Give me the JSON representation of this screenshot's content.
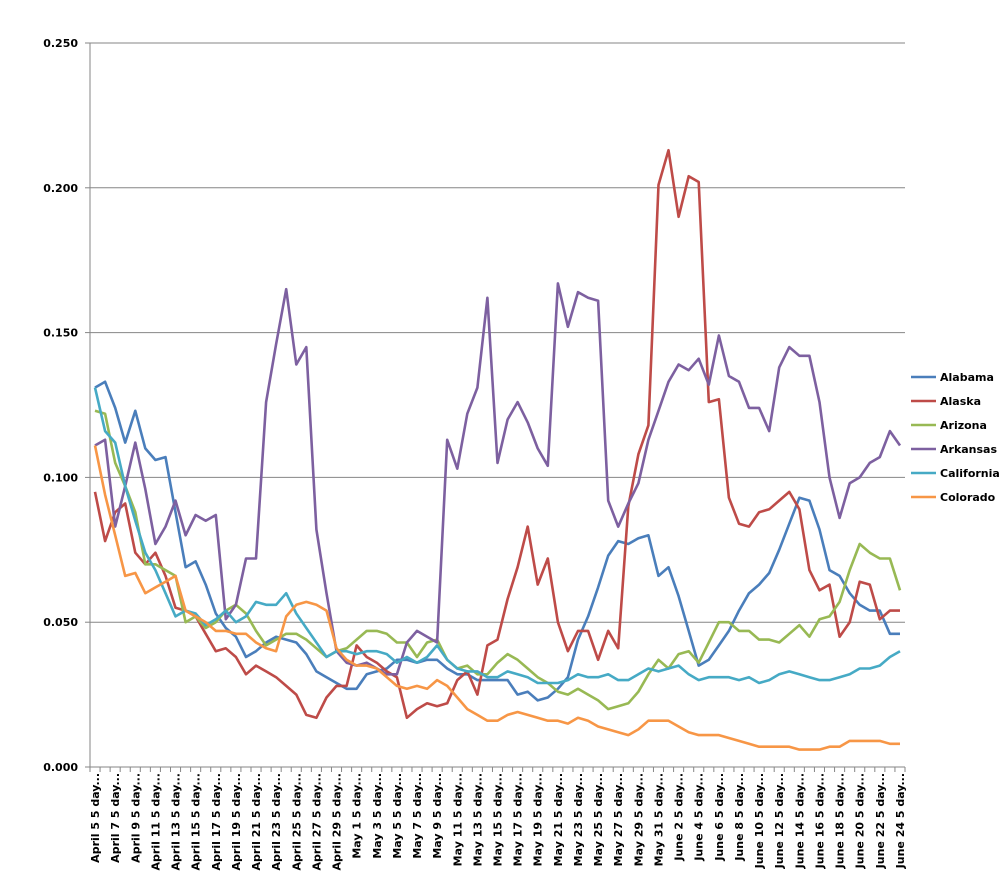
{
  "chart_data": {
    "type": "line",
    "title": "",
    "xlabel": "",
    "ylabel": "",
    "ylim": [
      0,
      0.25
    ],
    "y_ticks": [
      "0.000",
      "0.050",
      "0.100",
      "0.150",
      "0.200",
      "0.250"
    ],
    "grid": "horizontal",
    "legend": "right",
    "x_tick_labels": [
      "April 5 5 day...",
      "April 7 5 day...",
      "April 9 5 day...",
      "April 11 5 day...",
      "April 13 5 day...",
      "April 15 5 day...",
      "April 17 5 day...",
      "April 19 5 day...",
      "April 21 5 day...",
      "April 23 5 day...",
      "April 25 5 day...",
      "April 27 5 day...",
      "April 29 5 day...",
      "May 1 5 day...",
      "May 3 5 day...",
      "May 5 5 day...",
      "May 7 5 day...",
      "May 9 5 day...",
      "May 11 5 day...",
      "May 13 5 day...",
      "May 15 5 day...",
      "May 17 5 day...",
      "May 19 5 day...",
      "May 21 5 day...",
      "May 23 5 day...",
      "May 25 5 day...",
      "May 27 5 day...",
      "May 29 5 day...",
      "May 31 5 day...",
      "June 2 5 day...",
      "June 4 5 day...",
      "June 6 5 day...",
      "June 8 5 day...",
      "June 10 5 day...",
      "June 12 5 day...",
      "June 14 5 day...",
      "June 16 5 day...",
      "June 18 5 day...",
      "June 20 5 day...",
      "June 22 5 day...",
      "June 24 5 day..."
    ],
    "series": [
      {
        "name": "Alabama",
        "color": "#4A7EBB",
        "values": [
          0.131,
          0.133,
          0.124,
          0.112,
          0.123,
          0.11,
          0.106,
          0.107,
          0.088,
          0.069,
          0.071,
          0.063,
          0.053,
          0.048,
          0.045,
          0.038,
          0.04,
          0.043,
          0.045,
          0.044,
          0.043,
          0.039,
          0.033,
          0.031,
          0.029,
          0.027,
          0.027,
          0.032,
          0.033,
          0.034,
          0.037,
          0.037,
          0.036,
          0.037,
          0.037,
          0.034,
          0.032,
          0.032,
          0.03,
          0.03,
          0.03,
          0.03,
          0.025,
          0.026,
          0.023,
          0.024,
          0.027,
          0.031,
          0.044,
          0.052,
          0.062,
          0.073,
          0.078,
          0.077,
          0.079,
          0.08,
          0.066,
          0.069,
          0.059,
          0.047,
          0.035,
          0.037,
          0.042,
          0.047,
          0.054,
          0.06,
          0.063,
          0.067,
          0.075,
          0.084,
          0.093,
          0.092,
          0.082,
          0.068,
          0.066,
          0.06,
          0.056,
          0.054,
          0.054,
          0.046,
          0.046
        ]
      },
      {
        "name": "Alaska",
        "color": "#BE4B48",
        "values": [
          0.095,
          0.078,
          0.088,
          0.091,
          0.074,
          0.07,
          0.074,
          0.066,
          0.055,
          0.054,
          0.052,
          0.046,
          0.04,
          0.041,
          0.038,
          0.032,
          0.035,
          0.033,
          0.031,
          0.028,
          0.025,
          0.018,
          0.017,
          0.024,
          0.028,
          0.028,
          0.042,
          0.038,
          0.036,
          0.033,
          0.031,
          0.017,
          0.02,
          0.022,
          0.021,
          0.022,
          0.03,
          0.033,
          0.025,
          0.042,
          0.044,
          0.058,
          0.069,
          0.083,
          0.063,
          0.072,
          0.05,
          0.04,
          0.047,
          0.047,
          0.037,
          0.047,
          0.041,
          0.09,
          0.108,
          0.118,
          0.201,
          0.213,
          0.19,
          0.204,
          0.202,
          0.126,
          0.127,
          0.093,
          0.084,
          0.083,
          0.088,
          0.089,
          0.092,
          0.095,
          0.089,
          0.068,
          0.061,
          0.063,
          0.045,
          0.05,
          0.064,
          0.063,
          0.051,
          0.054,
          0.054
        ]
      },
      {
        "name": "Arizona",
        "color": "#98B954",
        "values": [
          0.123,
          0.122,
          0.105,
          0.097,
          0.088,
          0.07,
          0.07,
          0.068,
          0.066,
          0.05,
          0.052,
          0.048,
          0.05,
          0.054,
          0.056,
          0.053,
          0.047,
          0.042,
          0.044,
          0.046,
          0.046,
          0.044,
          0.041,
          0.038,
          0.04,
          0.041,
          0.044,
          0.047,
          0.047,
          0.046,
          0.043,
          0.043,
          0.038,
          0.043,
          0.044,
          0.037,
          0.034,
          0.035,
          0.032,
          0.032,
          0.036,
          0.039,
          0.037,
          0.034,
          0.031,
          0.029,
          0.026,
          0.025,
          0.027,
          0.025,
          0.023,
          0.02,
          0.021,
          0.022,
          0.026,
          0.032,
          0.037,
          0.034,
          0.039,
          0.04,
          0.036,
          0.043,
          0.05,
          0.05,
          0.047,
          0.047,
          0.044,
          0.044,
          0.043,
          0.046,
          0.049,
          0.045,
          0.051,
          0.052,
          0.057,
          0.068,
          0.077,
          0.074,
          0.072,
          0.072,
          0.061
        ]
      },
      {
        "name": "Arkansas",
        "color": "#7D60A0",
        "values": [
          0.111,
          0.113,
          0.083,
          0.097,
          0.112,
          0.096,
          0.077,
          0.083,
          0.092,
          0.08,
          0.087,
          0.085,
          0.087,
          0.051,
          0.056,
          0.072,
          0.072,
          0.126,
          0.146,
          0.165,
          0.139,
          0.145,
          0.082,
          0.06,
          0.04,
          0.036,
          0.035,
          0.036,
          0.034,
          0.032,
          0.032,
          0.043,
          0.047,
          0.045,
          0.043,
          0.113,
          0.103,
          0.122,
          0.131,
          0.162,
          0.105,
          0.12,
          0.126,
          0.119,
          0.11,
          0.104,
          0.167,
          0.152,
          0.164,
          0.162,
          0.161,
          0.092,
          0.083,
          0.091,
          0.098,
          0.113,
          0.123,
          0.133,
          0.139,
          0.137,
          0.141,
          0.132,
          0.149,
          0.135,
          0.133,
          0.124,
          0.124,
          0.116,
          0.138,
          0.145,
          0.142,
          0.142,
          0.126,
          0.1,
          0.086,
          0.098,
          0.1,
          0.105,
          0.107,
          0.116,
          0.111
        ]
      },
      {
        "name": "California",
        "color": "#46AAC5",
        "values": [
          0.131,
          0.116,
          0.112,
          0.097,
          0.085,
          0.074,
          0.068,
          0.06,
          0.052,
          0.054,
          0.053,
          0.049,
          0.051,
          0.054,
          0.05,
          0.052,
          0.057,
          0.056,
          0.056,
          0.06,
          0.053,
          0.048,
          0.043,
          0.038,
          0.04,
          0.04,
          0.039,
          0.04,
          0.04,
          0.039,
          0.036,
          0.038,
          0.036,
          0.038,
          0.042,
          0.037,
          0.034,
          0.033,
          0.033,
          0.031,
          0.031,
          0.033,
          0.032,
          0.031,
          0.029,
          0.029,
          0.029,
          0.03,
          0.032,
          0.031,
          0.031,
          0.032,
          0.03,
          0.03,
          0.032,
          0.034,
          0.033,
          0.034,
          0.035,
          0.032,
          0.03,
          0.031,
          0.031,
          0.031,
          0.03,
          0.031,
          0.029,
          0.03,
          0.032,
          0.033,
          0.032,
          0.031,
          0.03,
          0.03,
          0.031,
          0.032,
          0.034,
          0.034,
          0.035,
          0.038,
          0.04
        ]
      },
      {
        "name": "Colorado",
        "color": "#F79646",
        "values": [
          0.111,
          0.094,
          0.08,
          0.066,
          0.067,
          0.06,
          0.062,
          0.064,
          0.066,
          0.054,
          0.052,
          0.05,
          0.047,
          0.047,
          0.046,
          0.046,
          0.043,
          0.041,
          0.04,
          0.052,
          0.056,
          0.057,
          0.056,
          0.054,
          0.041,
          0.037,
          0.035,
          0.035,
          0.034,
          0.031,
          0.028,
          0.027,
          0.028,
          0.027,
          0.03,
          0.028,
          0.024,
          0.02,
          0.018,
          0.016,
          0.016,
          0.018,
          0.019,
          0.018,
          0.017,
          0.016,
          0.016,
          0.015,
          0.017,
          0.016,
          0.014,
          0.013,
          0.012,
          0.011,
          0.013,
          0.016,
          0.016,
          0.016,
          0.014,
          0.012,
          0.011,
          0.011,
          0.011,
          0.01,
          0.009,
          0.008,
          0.007,
          0.007,
          0.007,
          0.007,
          0.006,
          0.006,
          0.006,
          0.007,
          0.007,
          0.009,
          0.009,
          0.009,
          0.009,
          0.008,
          0.008
        ]
      }
    ]
  }
}
